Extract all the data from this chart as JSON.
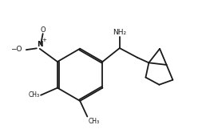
{
  "background": "#ffffff",
  "line_color": "#1a1a1a",
  "line_width": 1.3,
  "fig_width": 2.63,
  "fig_height": 1.71,
  "dpi": 100,
  "xlim": [
    0,
    10
  ],
  "ylim": [
    0,
    6.5
  ]
}
